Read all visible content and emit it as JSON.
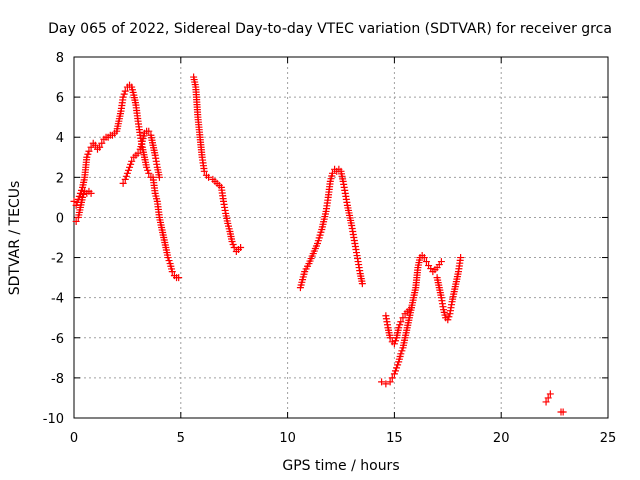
{
  "chart_data": {
    "type": "scatter",
    "title": "Day 065 of 2022, Sidereal Day-to-day VTEC variation (SDTVAR) for receiver grca",
    "xlabel": "GPS time / hours",
    "ylabel": "SDTVAR / TECUs",
    "xlim": [
      0,
      25
    ],
    "ylim": [
      -10,
      8
    ],
    "xticks": [
      0,
      5,
      10,
      15,
      20,
      25
    ],
    "yticks": [
      -10,
      -8,
      -6,
      -4,
      -2,
      0,
      2,
      4,
      6,
      8
    ],
    "xtick_labels": [
      "0",
      "5",
      "10",
      "15",
      "20",
      "25"
    ],
    "ytick_labels": [
      "-10",
      "-8",
      "-6",
      "-4",
      "-2",
      "0",
      "2",
      "4",
      "6",
      "8"
    ],
    "grid": true,
    "marker": "plus",
    "color": "#ff0000",
    "series": [
      {
        "x": [
          0.0,
          0.1,
          0.2,
          0.3,
          0.4,
          0.5,
          0.6,
          0.7,
          0.8,
          0.9,
          1.0,
          1.1,
          1.2,
          1.3,
          1.4,
          1.5,
          1.6,
          1.7,
          1.8,
          1.9,
          2.0,
          2.1,
          2.2,
          2.3,
          2.4,
          2.5,
          2.6,
          2.7,
          2.8,
          2.9,
          3.0,
          3.1,
          3.2,
          3.3,
          3.4,
          3.5,
          3.6,
          3.7,
          3.8,
          3.9,
          4.0,
          4.1,
          4.2,
          4.3,
          4.4,
          4.5,
          4.6,
          4.7,
          4.8,
          4.9
        ],
        "y": [
          0.8,
          0.6,
          0.9,
          1.2,
          1.5,
          2.0,
          3.0,
          3.3,
          3.5,
          3.7,
          3.6,
          3.4,
          3.5,
          3.7,
          3.9,
          4.0,
          4.0,
          4.1,
          4.1,
          4.2,
          4.3,
          4.8,
          5.3,
          6.0,
          6.3,
          6.5,
          6.6,
          6.5,
          6.1,
          5.6,
          4.8,
          4.1,
          3.5,
          3.0,
          2.5,
          2.2,
          2.0,
          2.0,
          1.2,
          0.8,
          0.0,
          -0.5,
          -1.0,
          -1.5,
          -2.0,
          -2.3,
          -2.7,
          -2.9,
          -3.0,
          -3.0
        ]
      },
      {
        "x": [
          0.1,
          0.2,
          0.3,
          0.4,
          0.5,
          0.6,
          0.7,
          0.8
        ],
        "y": [
          -0.2,
          0.0,
          0.5,
          1.0,
          1.3,
          1.2,
          1.3,
          1.2
        ]
      },
      {
        "x": [
          2.3,
          2.4,
          2.5,
          2.6,
          2.7,
          2.8,
          2.9,
          3.0,
          3.1,
          3.2,
          3.3,
          3.4,
          3.5,
          3.6,
          3.7,
          3.8,
          3.9,
          4.0
        ],
        "y": [
          1.7,
          1.9,
          2.2,
          2.5,
          2.8,
          3.0,
          3.1,
          3.2,
          3.4,
          3.8,
          4.2,
          4.3,
          4.3,
          4.1,
          3.6,
          3.1,
          2.5,
          2.0
        ]
      },
      {
        "x": [
          5.6,
          5.7,
          5.8,
          5.9,
          6.0,
          6.1,
          6.2,
          6.3,
          6.5,
          6.7,
          6.9,
          7.0,
          7.1,
          7.2,
          7.3,
          7.4,
          7.5,
          7.6,
          7.7,
          7.8
        ],
        "y": [
          7.0,
          6.5,
          5.0,
          4.0,
          3.0,
          2.3,
          2.1,
          2.0,
          1.9,
          1.7,
          1.5,
          0.8,
          0.2,
          -0.3,
          -0.7,
          -1.2,
          -1.5,
          -1.7,
          -1.6,
          -1.5
        ]
      },
      {
        "x": [
          10.6,
          10.8,
          11.0,
          11.2,
          11.4,
          11.6,
          11.8,
          11.9,
          12.0,
          12.1,
          12.2,
          12.3,
          12.4,
          12.5,
          12.6,
          12.7,
          12.8,
          12.9,
          13.0,
          13.1,
          13.2,
          13.3,
          13.4,
          13.5
        ],
        "y": [
          -3.5,
          -2.7,
          -2.3,
          -1.8,
          -1.3,
          -0.6,
          0.3,
          1.0,
          1.8,
          2.2,
          2.4,
          2.3,
          2.4,
          2.3,
          1.8,
          1.2,
          0.6,
          0.1,
          -0.4,
          -1.0,
          -1.6,
          -2.2,
          -2.8,
          -3.3
        ]
      },
      {
        "x": [
          14.4,
          14.6,
          14.8,
          14.9,
          15.0,
          15.1,
          15.2,
          15.3,
          15.4,
          15.5,
          15.6,
          15.7,
          15.8,
          15.9,
          16.0,
          16.1,
          16.2,
          16.3,
          16.4,
          16.5,
          16.6,
          16.8,
          17.0,
          17.2
        ],
        "y": [
          -8.2,
          -8.3,
          -8.2,
          -8.0,
          -7.8,
          -7.5,
          -7.2,
          -6.8,
          -6.5,
          -6.0,
          -5.5,
          -5.0,
          -4.5,
          -4.0,
          -3.5,
          -2.5,
          -2.0,
          -1.9,
          -2.0,
          -2.2,
          -2.4,
          -2.7,
          -2.5,
          -2.2
        ]
      },
      {
        "x": [
          14.6,
          14.7,
          14.8,
          14.9,
          15.0,
          15.1,
          15.2,
          15.3,
          15.4,
          15.5,
          15.6,
          15.7,
          15.8
        ],
        "y": [
          -4.9,
          -5.5,
          -6.0,
          -6.2,
          -6.3,
          -6.0,
          -5.5,
          -5.2,
          -5.0,
          -4.8,
          -4.7,
          -4.6,
          -4.5
        ]
      },
      {
        "x": [
          17.0,
          17.1,
          17.2,
          17.3,
          17.4,
          17.5,
          17.6,
          17.7,
          17.8,
          17.9,
          18.0,
          18.1
        ],
        "y": [
          -3.0,
          -3.5,
          -4.0,
          -4.6,
          -5.0,
          -5.1,
          -4.8,
          -4.2,
          -3.7,
          -3.2,
          -2.7,
          -2.0
        ]
      },
      {
        "x": [
          22.1,
          22.2,
          22.3
        ],
        "y": [
          -9.2,
          -9.0,
          -8.8
        ]
      },
      {
        "x": [
          22.8,
          22.9
        ],
        "y": [
          -9.7,
          -9.7
        ]
      }
    ]
  }
}
